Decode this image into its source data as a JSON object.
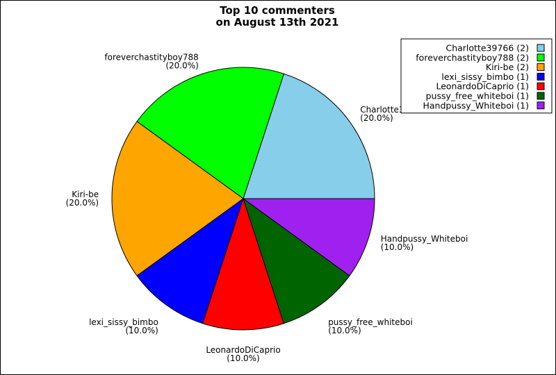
{
  "chart_data": {
    "type": "pie",
    "title": "Top 10 commenters\non August 13th 2021",
    "slices": [
      {
        "name": "Charlotte39766",
        "count": 2,
        "percent": "20.0%",
        "color": "#87ceeb"
      },
      {
        "name": "foreverchastityboy788",
        "count": 2,
        "percent": "20.0%",
        "color": "#00ff00"
      },
      {
        "name": "Kiri-be",
        "count": 2,
        "percent": "20.0%",
        "color": "#ffa500"
      },
      {
        "name": "lexi_sissy_bimbo",
        "count": 1,
        "percent": "10.0%",
        "color": "#0000ff"
      },
      {
        "name": "LeonardoDiCaprio",
        "count": 1,
        "percent": "10.0%",
        "color": "#ff0000"
      },
      {
        "name": "pussy_free_whiteboi",
        "count": 1,
        "percent": "10.0%",
        "color": "#006400"
      },
      {
        "name": "Handpussy_Whiteboi",
        "count": 1,
        "percent": "10.0%",
        "color": "#a020f0"
      }
    ],
    "legend": {
      "placement": "top-right",
      "entries": [
        "Charlotte39766 (2)",
        "foreverchastityboy788 (2)",
        "Kiri-be (2)",
        "lexi_sissy_bimbo (1)",
        "LeonardoDiCaprio (1)",
        "pussy_free_whiteboi (1)",
        "Handpussy_Whiteboi (1)"
      ]
    }
  }
}
